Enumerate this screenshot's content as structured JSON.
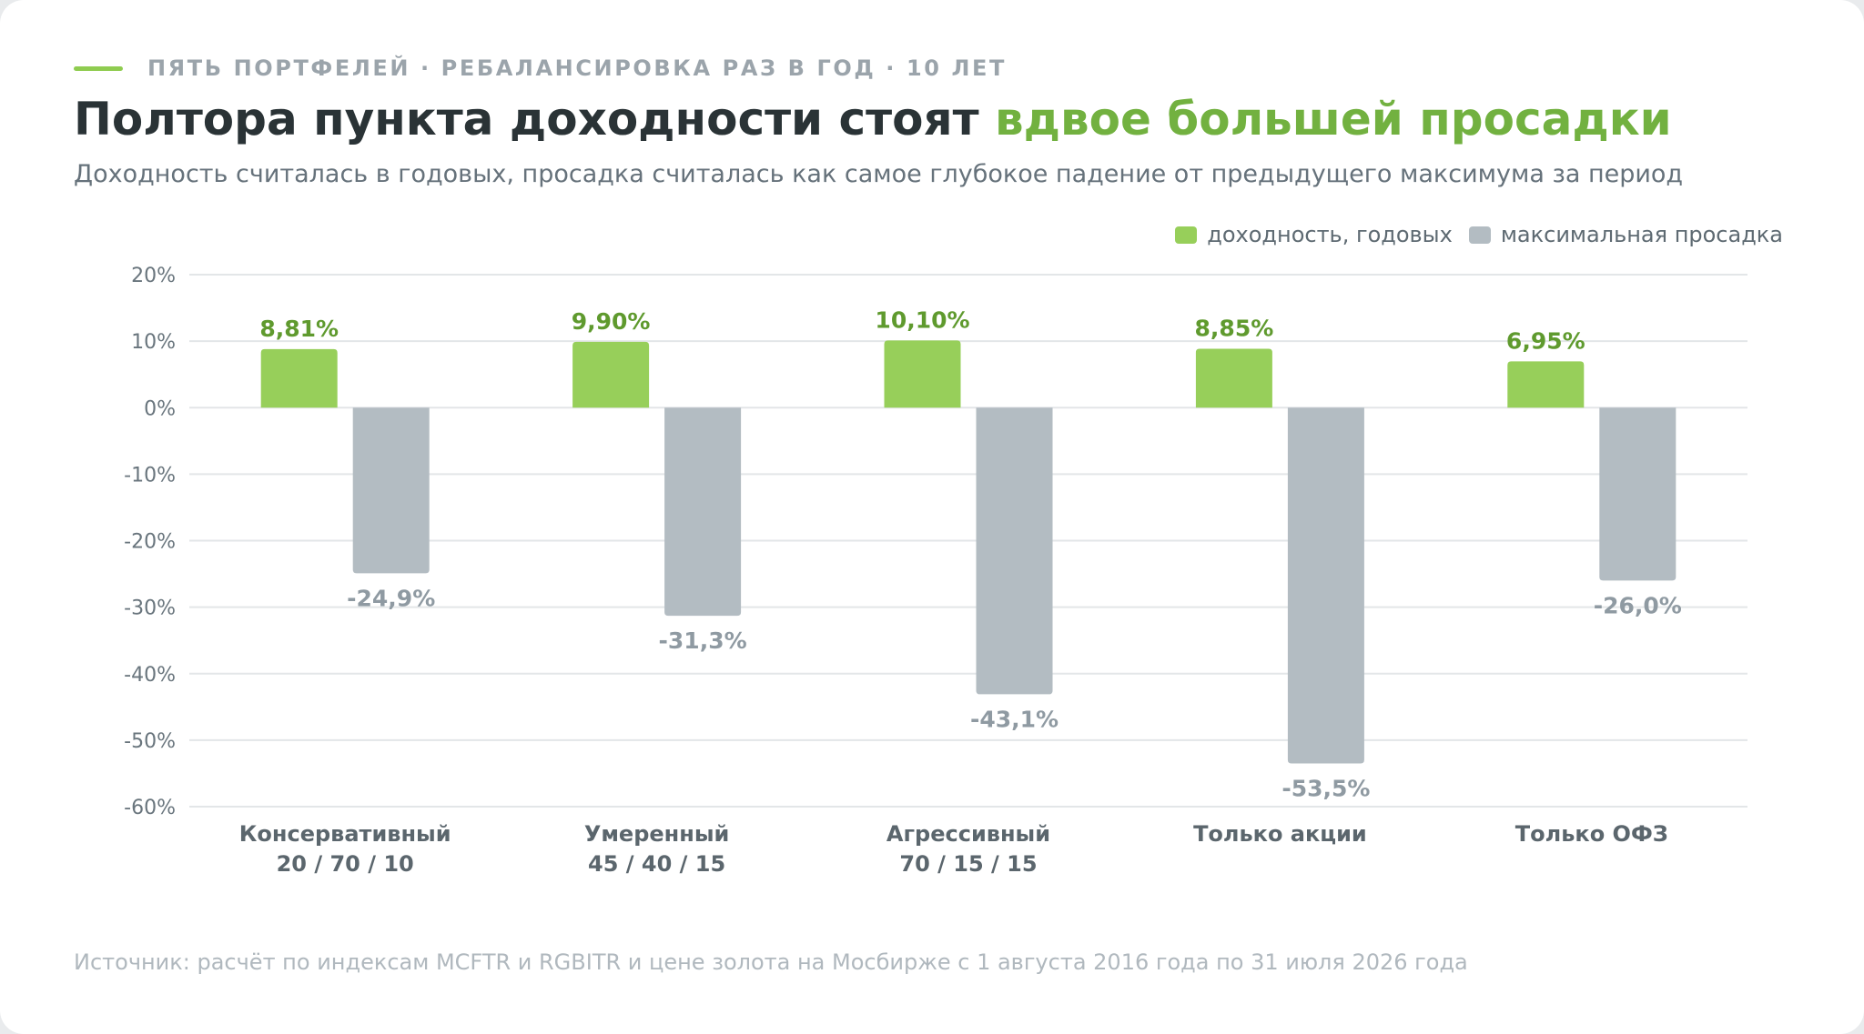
{
  "header": {
    "kicker": "ПЯТЬ ПОРТФЕЛЕЙ · РЕБАЛАНСИРОВКА РАЗ В ГОД · 10 ЛЕТ",
    "title_main": "Полтора пункта доходности стоят ",
    "title_accent": "вдвое большей просадки",
    "subtitle": "Доходность считалась в годовых, просадка считалась как самое глубокое падение от предыдущего максимума за период"
  },
  "footer": {
    "source": "Источник: расчёт по индексам MCFTR и RGBITR и цене золота на Мосбирже с 1 августа 2016 года по 31 июля 2026 года"
  },
  "colors": {
    "return_bar": "#97cf5a",
    "return_label": "#5f9a2e",
    "drawdown_bar": "#b3bcc2",
    "drawdown_label": "#8f9aa2",
    "accent": "#72b140"
  },
  "chart_data": {
    "type": "bar",
    "categories": [
      {
        "name": "Консервативный",
        "sub": "20 / 70 / 10"
      },
      {
        "name": "Умеренный",
        "sub": "45 / 40 / 15"
      },
      {
        "name": "Агрессивный",
        "sub": "70 / 15 / 15"
      },
      {
        "name": "Только акции",
        "sub": ""
      },
      {
        "name": "Только ОФЗ",
        "sub": ""
      }
    ],
    "series": [
      {
        "name": "доходность, годовых",
        "values": [
          8.81,
          9.9,
          10.1,
          8.85,
          6.95
        ],
        "labels": [
          "8,81%",
          "9,90%",
          "10,10%",
          "8,85%",
          "6,95%"
        ]
      },
      {
        "name": "максимальная просадка",
        "values": [
          -24.9,
          -31.3,
          -43.1,
          -53.5,
          -26.0
        ],
        "labels": [
          "-24,9%",
          "-31,3%",
          "-43,1%",
          "-53,5%",
          "-26,0%"
        ]
      }
    ],
    "ylim": [
      -60,
      20
    ],
    "yticks": [
      20,
      10,
      0,
      -10,
      -20,
      -30,
      -40,
      -50,
      -60
    ],
    "ytick_labels": [
      "20%",
      "10%",
      "0%",
      "-10%",
      "-20%",
      "-30%",
      "-40%",
      "-50%",
      "-60%"
    ],
    "grid": true,
    "legend_position": "top-right"
  }
}
